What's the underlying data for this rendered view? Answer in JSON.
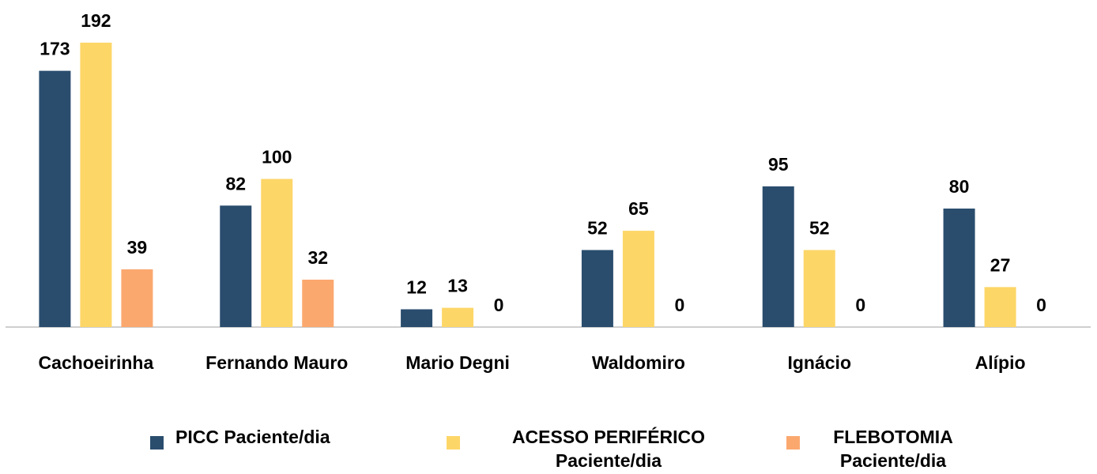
{
  "chart_data": {
    "type": "bar",
    "categories": [
      "Cachoeirinha",
      "Fernando Mauro",
      "Mario Degni",
      "Waldomiro",
      "Ignácio",
      "Alípio"
    ],
    "series": [
      {
        "name": "PICC Paciente/dia",
        "color": "#2a4d6e",
        "values": [
          173,
          82,
          12,
          52,
          95,
          80
        ]
      },
      {
        "name": "ACESSO PERIFÉRICO Paciente/dia",
        "color": "#fdd668",
        "values": [
          192,
          100,
          13,
          65,
          52,
          27
        ]
      },
      {
        "name": "FLEBOTOMIA Paciente/dia",
        "color": "#fba86f",
        "values": [
          39,
          32,
          0,
          0,
          0,
          0
        ]
      }
    ],
    "legend": "bottom"
  }
}
